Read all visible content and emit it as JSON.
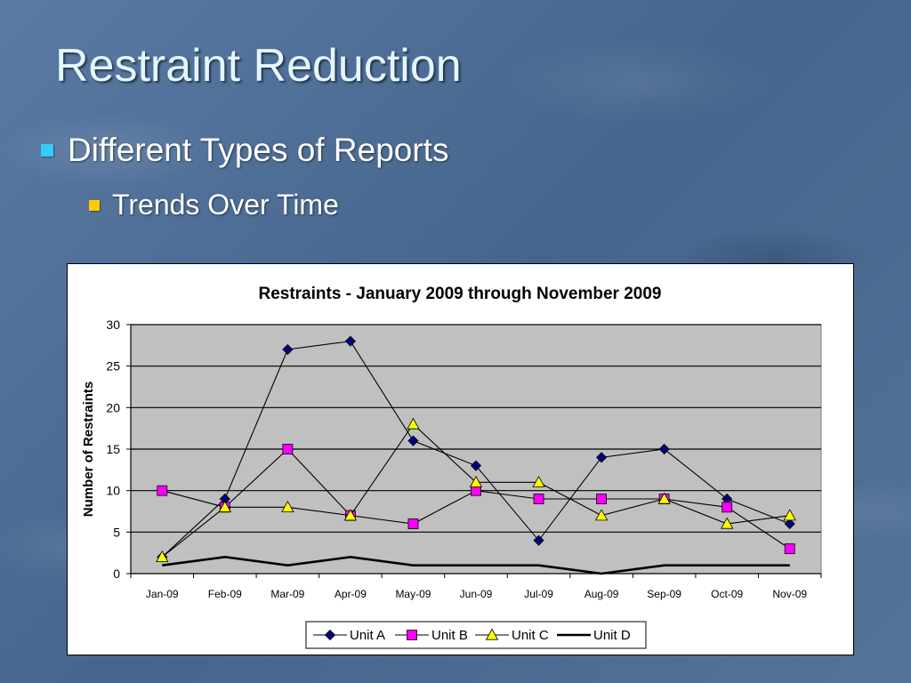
{
  "slide": {
    "title": "Restraint Reduction",
    "bullet1": "Different Types of Reports",
    "bullet2": "Trends Over Time"
  },
  "chart_data": {
    "type": "line",
    "title": "Restraints - January 2009 through November 2009",
    "ylabel": "Number of Restraints",
    "xlabel": "",
    "categories": [
      "Jan-09",
      "Feb-09",
      "Mar-09",
      "Apr-09",
      "May-09",
      "Jun-09",
      "Jul-09",
      "Aug-09",
      "Sep-09",
      "Oct-09",
      "Nov-09"
    ],
    "ylim": [
      0,
      30
    ],
    "yticks": [
      0,
      5,
      10,
      15,
      20,
      25,
      30
    ],
    "grid": true,
    "legend_position": "bottom",
    "plot_background": "#c0c0c0",
    "series": [
      {
        "name": "Unit A",
        "marker": "diamond",
        "color": "#000080",
        "values": [
          2,
          9,
          27,
          28,
          16,
          13,
          4,
          14,
          15,
          9,
          6
        ]
      },
      {
        "name": "Unit B",
        "marker": "square",
        "color": "#ff00ff",
        "values": [
          10,
          8,
          15,
          7,
          6,
          10,
          9,
          9,
          9,
          8,
          3
        ]
      },
      {
        "name": "Unit C",
        "marker": "triangle",
        "color": "#ffff00",
        "values": [
          2,
          8,
          8,
          7,
          18,
          11,
          11,
          7,
          9,
          6,
          7
        ]
      },
      {
        "name": "Unit D",
        "marker": "none",
        "color": "#000000",
        "values": [
          1,
          2,
          1,
          2,
          1,
          1,
          1,
          0,
          1,
          1,
          1
        ]
      }
    ]
  }
}
